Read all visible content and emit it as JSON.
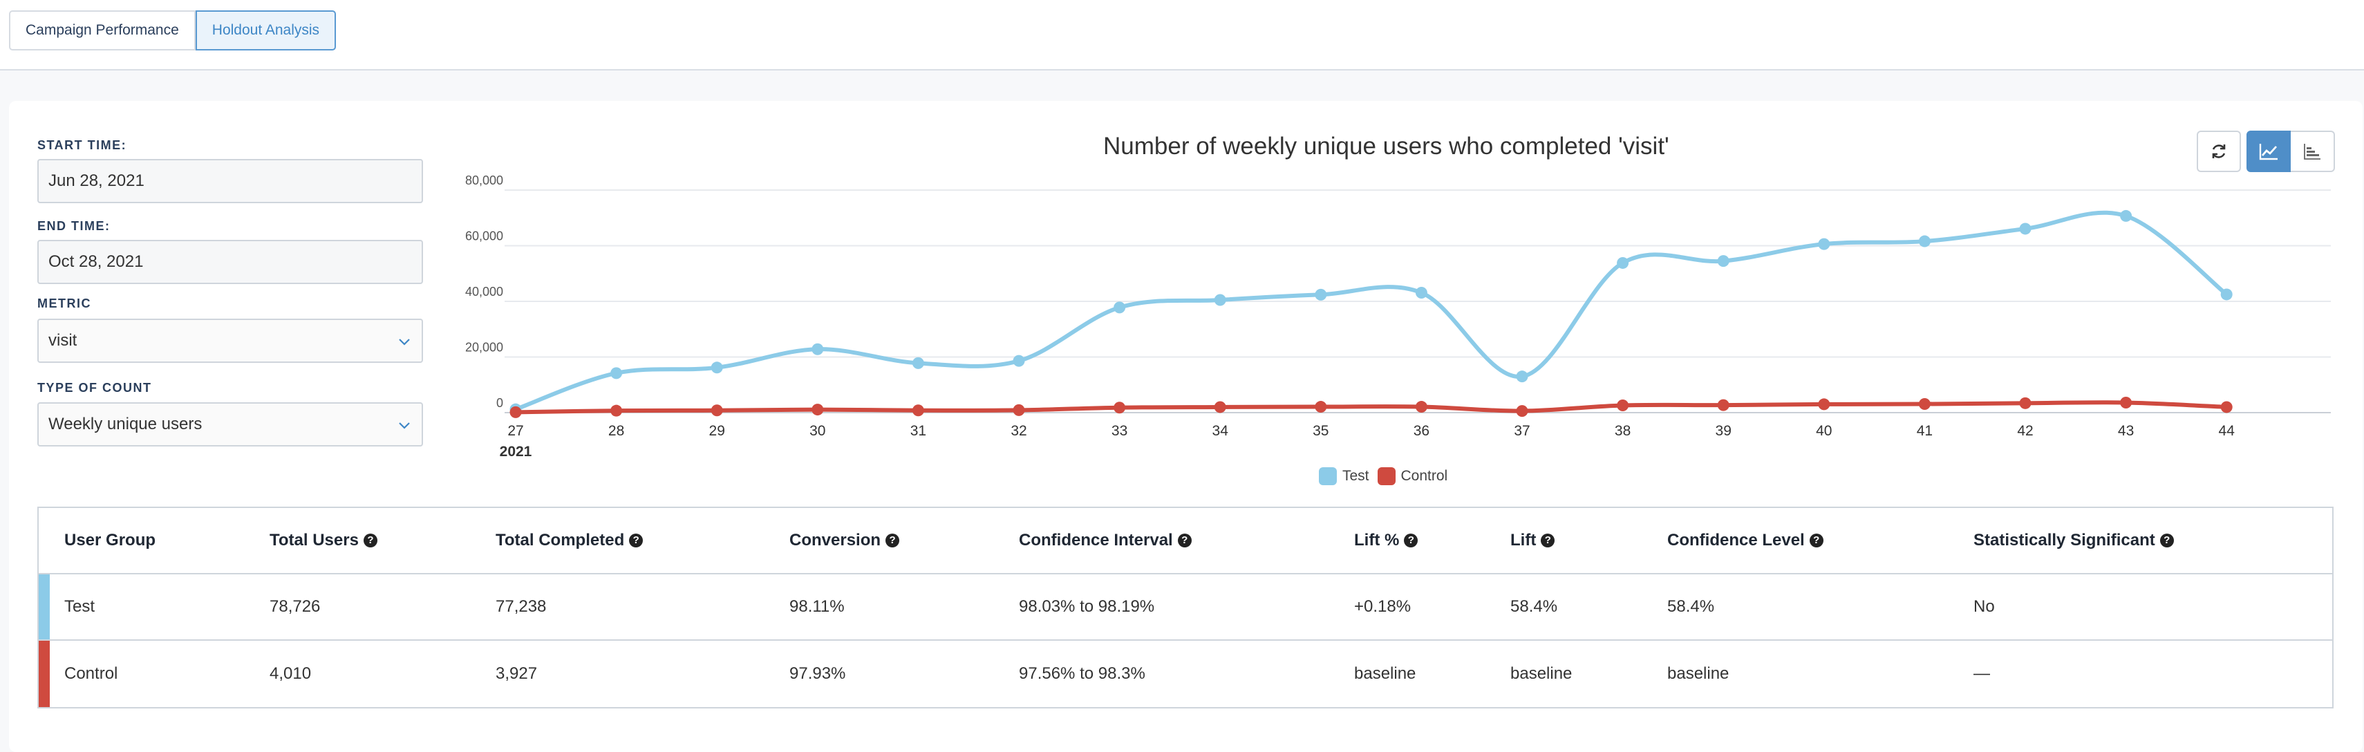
{
  "tabs": [
    {
      "label": "Campaign Performance",
      "active": false
    },
    {
      "label": "Holdout Analysis",
      "active": true
    }
  ],
  "form": {
    "start_label": "START TIME:",
    "start_value": "Jun 28, 2021",
    "end_label": "END TIME:",
    "end_value": "Oct 28, 2021",
    "metric_label": "METRIC",
    "metric_value": "visit",
    "count_label": "TYPE OF COUNT",
    "count_value": "Weekly unique users"
  },
  "toolbar": {
    "refresh_icon": "refresh-icon",
    "line_icon": "line-chart-icon",
    "bar_icon": "bar-chart-icon"
  },
  "colors": {
    "test": "#8ccbe8",
    "control": "#cf4a3f",
    "accent": "#4f8ec8"
  },
  "chart_data": {
    "type": "line",
    "title": "Number of weekly unique users who completed 'visit'",
    "x": [
      "27",
      "28",
      "29",
      "30",
      "31",
      "32",
      "33",
      "34",
      "35",
      "36",
      "37",
      "38",
      "39",
      "40",
      "41",
      "42",
      "43",
      "44"
    ],
    "x_sublabel": "2021",
    "yticks": [
      "0",
      "20,000",
      "40,000",
      "60,000",
      "80,000"
    ],
    "ylim": [
      0,
      80000
    ],
    "series": [
      {
        "name": "Test",
        "color": "#8ccbe8",
        "values": [
          1200,
          14200,
          16200,
          22800,
          17800,
          18600,
          37800,
          40500,
          42400,
          43100,
          13000,
          53800,
          54500,
          60600,
          61600,
          66100,
          70700,
          42500
        ]
      },
      {
        "name": "Control",
        "color": "#cf4a3f",
        "values": [
          150,
          700,
          800,
          1100,
          800,
          900,
          1800,
          2000,
          2100,
          2100,
          600,
          2600,
          2700,
          3000,
          3100,
          3400,
          3600,
          2000
        ]
      }
    ],
    "legend": [
      {
        "name": "Test",
        "color": "#8ccbe8"
      },
      {
        "name": "Control",
        "color": "#cf4a3f"
      }
    ]
  },
  "table": {
    "headers": [
      "User Group",
      "Total Users",
      "Total Completed",
      "Conversion",
      "Confidence Interval",
      "Lift %",
      "Lift",
      "Confidence Level",
      "Statistically Significant"
    ],
    "rows": [
      {
        "color": "#8ccbe8",
        "cells": [
          "Test",
          "78,726",
          "77,238",
          "98.11%",
          "98.03% to 98.19%",
          "+0.18%",
          "58.4%",
          "58.4%",
          "No"
        ]
      },
      {
        "color": "#cf4a3f",
        "cells": [
          "Control",
          "4,010",
          "3,927",
          "97.93%",
          "97.56% to 98.3%",
          "baseline",
          "baseline",
          "baseline",
          "—"
        ]
      }
    ]
  }
}
